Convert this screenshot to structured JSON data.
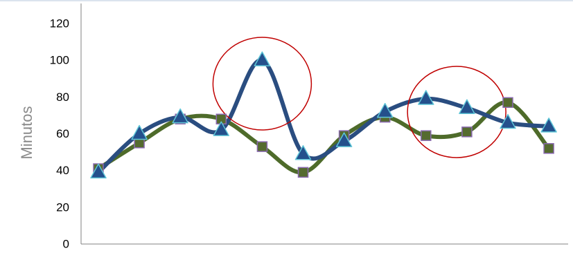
{
  "chart_data": {
    "type": "line",
    "ylabel": "Minutos",
    "ylim": [
      0,
      120
    ],
    "yticks": [
      "0",
      "20",
      "40",
      "60",
      "80",
      "100",
      "120"
    ],
    "x": [
      1,
      2,
      3,
      4,
      5,
      6,
      7,
      8,
      9,
      10,
      11,
      12
    ],
    "grid": false,
    "series": [
      {
        "color": "#4e6b2a",
        "marker": "square",
        "marker_color": "#556b2f",
        "marker_edge": "#8a6ab0",
        "values": [
          41,
          55,
          68,
          68,
          53,
          39,
          59,
          69,
          59,
          61,
          77,
          52
        ]
      },
      {
        "color": "#2a4d80",
        "marker": "triangle",
        "marker_color": "#24508c",
        "marker_edge": "#5fc6d8",
        "values": [
          39,
          60,
          69,
          62,
          100,
          49,
          56,
          72,
          79,
          74,
          66,
          64
        ]
      }
    ],
    "annotations": [
      {
        "type": "circle",
        "color": "#c00000",
        "around_x": 5
      },
      {
        "type": "circle",
        "color": "#c00000",
        "around_x": 9.75
      }
    ]
  }
}
